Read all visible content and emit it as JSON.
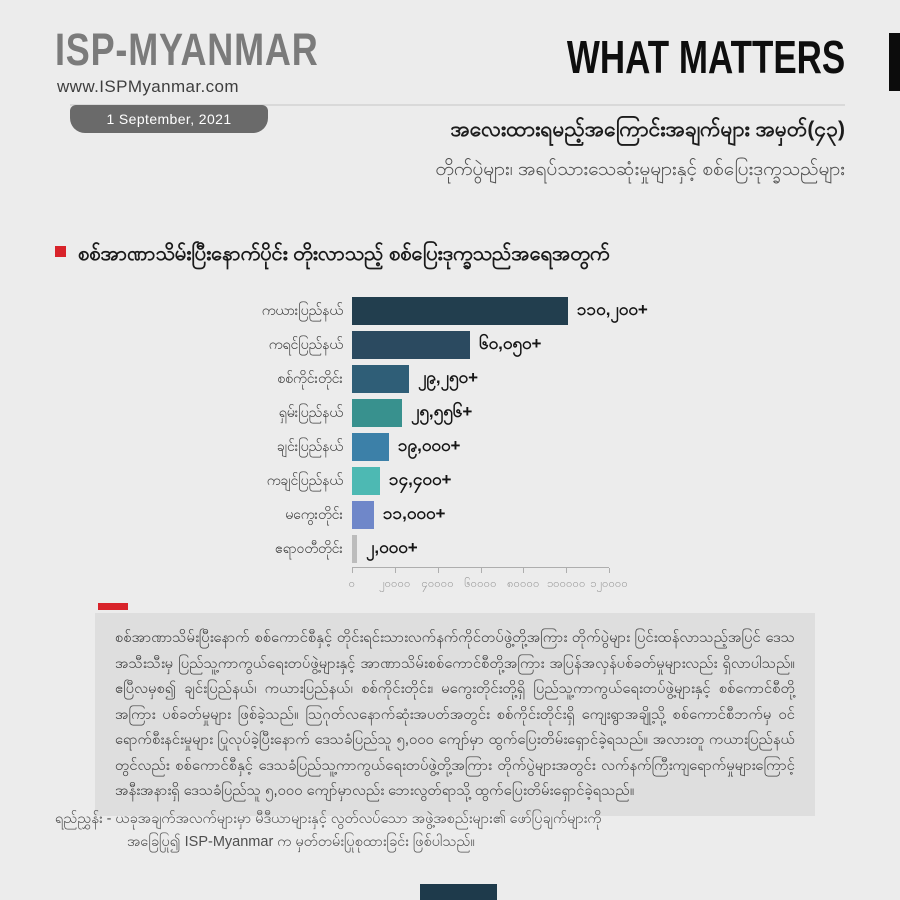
{
  "header": {
    "logo": "ISP-MYANMAR",
    "website": "www.ISPMyanmar.com",
    "date_badge": "1 September, 2021",
    "masthead": "WHAT MATTERS",
    "title": "အလေးထားရမည့်အကြောင်းအချက်များ အမှတ်(၄၃)",
    "subtitle": "တိုက်ပွဲများ၊ အရပ်သားသေဆုံးမှုများနှင့် စစ်ပြေးဒုက္ခသည်များ"
  },
  "section": {
    "heading": "စစ်အာဏာသိမ်းပြီးနောက်ပိုင်း တိုးလာသည့် စစ်ပြေးဒုက္ခသည်အရေအတွက်"
  },
  "chart_data": {
    "type": "bar",
    "orientation": "horizontal",
    "title": "စစ်အာဏာသိမ်းပြီးနောက်ပိုင်း တိုးလာသည့် စစ်ပြေးဒုက္ခသည်အရေအတွက်",
    "categories": [
      "ကယားပြည်နယ်",
      "ကရင်ပြည်နယ်",
      "စစ်ကိုင်းတိုင်း",
      "ရှမ်းပြည်နယ်",
      "ချင်းပြည်နယ်",
      "ကချင်ပြည်နယ်",
      "မကွေးတိုင်း",
      "ဧရာဝတီတိုင်း"
    ],
    "values": [
      110200,
      60050,
      29250,
      25556,
      19000,
      14400,
      11000,
      2000
    ],
    "value_labels": [
      "၁၁၀,၂၀၀+",
      "၆၀,၀၅၀+",
      "၂၉,၂၅၀+",
      "၂၅,၅၅၆+",
      "၁၉,၀၀၀+",
      "၁၄,၄၀၀+",
      "၁၁,၀၀၀+",
      "၂,၀၀၀+"
    ],
    "bar_colors": [
      "#223e4e",
      "#2b4a60",
      "#2f5e77",
      "#38918e",
      "#3c80a8",
      "#4db9b3",
      "#6f87c9",
      "#bcbcbc"
    ],
    "xlim": [
      0,
      120000
    ],
    "x_tick_values": [
      0,
      20000,
      40000,
      60000,
      80000,
      100000,
      120000
    ],
    "x_tick_labels": [
      "၀",
      "၂၀၀၀၀",
      "၄၀၀၀၀",
      "၆၀၀၀၀",
      "၈၀၀၀၀",
      "၁၀၀၀၀၀",
      "၁၂၀၀၀၀"
    ],
    "grid": false,
    "legend_position": "none",
    "value_label_position": "right-of-bar"
  },
  "body": {
    "paragraph": "စစ်အာဏာသိမ်းပြီးနောက် စစ်ကောင်စီနှင့် တိုင်းရင်းသားလက်နက်ကိုင်တပ်ဖွဲ့တို့အကြား တိုက်ပွဲများ ပြင်းထန်လာသည့်အပြင် ဒေသအသီးသီးမှ ပြည်သူ့ကာကွယ်ရေးတပ်ဖွဲ့များနှင့် အာဏာသိမ်းစစ်ကောင်စီတို့အကြား အပြန်အလှန်ပစ်ခတ်မှုများလည်း ရှိလာပါသည်။ ဧပြီလမှစ၍ ချင်းပြည်နယ်၊ ကယားပြည်နယ်၊ စစ်ကိုင်းတိုင်း၊ မကွေးတိုင်းတို့ရှိ ပြည်သူ့ကာကွယ်ရေးတပ်ဖွဲ့များနှင့် စစ်ကောင်စီတို့အကြား ပစ်ခတ်မှုများ ဖြစ်ခဲ့သည်။ သြဂုတ်လနောက်ဆုံးအပတ်အတွင်း စစ်ကိုင်းတိုင်းရှိ ကျေးရွာအချို့သို့ စစ်ကောင်စီဘက်မှ ဝင်ရောက်စီးနင်းမှုများ ပြုလုပ်ခဲ့ပြီးနောက် ဒေသခံပြည်သူ ၅,၀၀၀ ကျော်မှာ ထွက်ပြေးတိမ်းရှောင်ခဲ့ရသည်။ အလားတူ ကယားပြည်နယ်တွင်လည်း စစ်ကောင်စီနှင့် ဒေသခံပြည်သူ့ကာကွယ်ရေးတပ်ဖွဲ့တို့အကြား တိုက်ပွဲများအတွင်း လက်နက်ကြီးကျရောက်မှုများကြောင့် အနီးအနားရှိ ဒေသခံပြည်သူ ၅,၀၀၀ ကျော်မှာလည်း ဘေးလွတ်ရာသို့ ထွက်ပြေးတိမ်းရှောင်ခဲ့ရသည်။"
  },
  "footer": {
    "line1": "ရည်ညွှန်း - ယခုအချက်အလက်များမှာ မီဒီယာများနှင့် လွတ်လပ်သော အဖွဲ့အစည်းများ၏ ဖော်ပြချက်များကို",
    "line2": "အခြေပြု၍ ISP-Myanmar က မှတ်တမ်းပြုစုထားခြင်း ဖြစ်ပါသည်။"
  },
  "colors": {
    "page_background": "#ececec",
    "accent_red": "#d8232a",
    "badge_background": "#6a6a6a",
    "panel_background": "#dedede",
    "masthead_black": "#0e0e0e",
    "logo_gray": "#7b7b7b",
    "bottom_mark": "#1e3a4b"
  }
}
